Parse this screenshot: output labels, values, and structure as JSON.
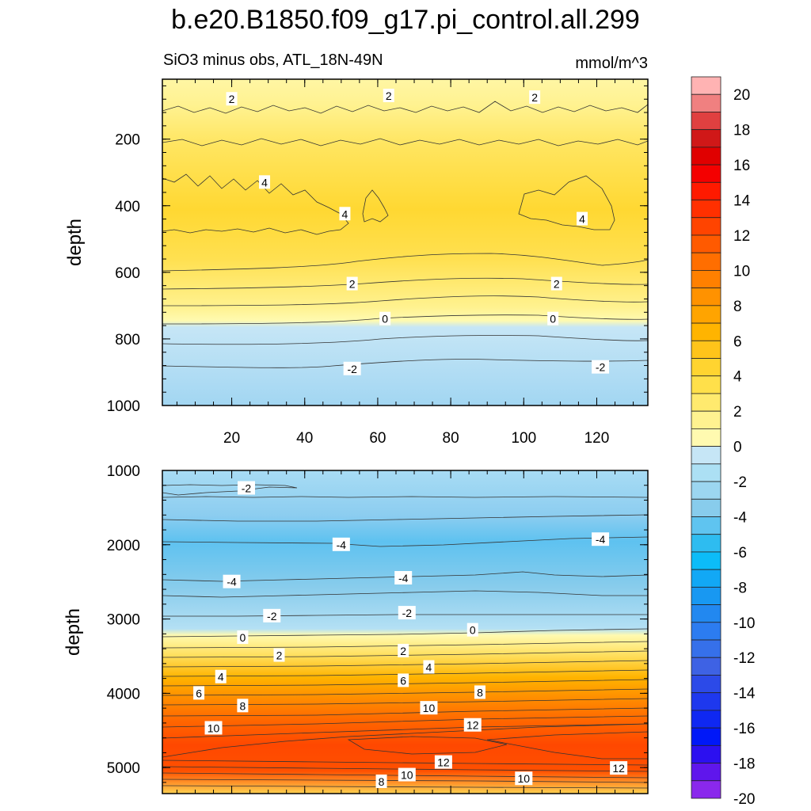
{
  "chart_data": {
    "type": "contour",
    "title": "b.e20.B1850.f09_g17.pi_control.all.299",
    "subtitle": "SiO3 minus obs, ATL_18N-49N",
    "units": "mmol/m^3",
    "colorbar": {
      "labels": [
        "20",
        "18",
        "16",
        "14",
        "12",
        "10",
        "8",
        "6",
        "4",
        "2",
        "0",
        "-2",
        "-4",
        "-6",
        "-8",
        "-10",
        "-12",
        "-14",
        "-16",
        "-18",
        "-20"
      ],
      "colors": [
        "#ffb3b3",
        "#f08080",
        "#e04040",
        "#d01818",
        "#e00000",
        "#f40000",
        "#ff1a00",
        "#ff3000",
        "#ff4400",
        "#ff5a00",
        "#ff6e00",
        "#ff8000",
        "#ff9200",
        "#ffa400",
        "#ffb400",
        "#ffc41a",
        "#ffd430",
        "#ffe04a",
        "#ffea6e",
        "#fff290",
        "#fffab0",
        "#c6e6f6",
        "#ace0f4",
        "#9cd6f0",
        "#88ccec",
        "#5fc4f0",
        "#2ebcf0",
        "#0cbcf8",
        "#12a8f5",
        "#1898f2",
        "#2288f0",
        "#2c7cf0",
        "#3670ea",
        "#3e62e4",
        "#2c4ae8",
        "#1e38ee",
        "#0f28f2",
        "#0018f8",
        "#2c10f0",
        "#5f16ec",
        "#8a28ec"
      ]
    },
    "panels": [
      {
        "name": "upper",
        "ylabel": "depth",
        "xlabel": "",
        "xlim": [
          1,
          134
        ],
        "ylim": [
          1000,
          20
        ],
        "x_ticks": [
          "20",
          "40",
          "60",
          "80",
          "100",
          "120"
        ],
        "y_ticks": [
          "200",
          "400",
          "600",
          "800",
          "1000"
        ],
        "contour_labels": [
          {
            "x": 20,
            "y": 80,
            "text": "2"
          },
          {
            "x": 63,
            "y": 70,
            "text": "2"
          },
          {
            "x": 103,
            "y": 75,
            "text": "2"
          },
          {
            "x": 29,
            "y": 330,
            "text": "4"
          },
          {
            "x": 51,
            "y": 425,
            "text": "4"
          },
          {
            "x": 116,
            "y": 440,
            "text": "4"
          },
          {
            "x": 53,
            "y": 635,
            "text": "2"
          },
          {
            "x": 109,
            "y": 635,
            "text": "2"
          },
          {
            "x": 62,
            "y": 740,
            "text": "0"
          },
          {
            "x": 108,
            "y": 740,
            "text": "0"
          },
          {
            "x": 53,
            "y": 890,
            "text": "-2"
          },
          {
            "x": 121,
            "y": 885,
            "text": "-2"
          }
        ]
      },
      {
        "name": "lower",
        "ylabel": "depth",
        "xlabel": "",
        "xlim": [
          1,
          134
        ],
        "ylim": [
          5350,
          1000
        ],
        "x_ticks": [],
        "y_ticks": [
          "1000",
          "2000",
          "3000",
          "4000",
          "5000"
        ],
        "contour_labels": [
          {
            "x": 24,
            "y": 1240,
            "text": "-2"
          },
          {
            "x": 50,
            "y": 2000,
            "text": "-4"
          },
          {
            "x": 121,
            "y": 1930,
            "text": "-4"
          },
          {
            "x": 20,
            "y": 2500,
            "text": "-4"
          },
          {
            "x": 67,
            "y": 2450,
            "text": "-4"
          },
          {
            "x": 31,
            "y": 2960,
            "text": "-2"
          },
          {
            "x": 68,
            "y": 2920,
            "text": "-2"
          },
          {
            "x": 23,
            "y": 3250,
            "text": "0"
          },
          {
            "x": 86,
            "y": 3150,
            "text": "0"
          },
          {
            "x": 33,
            "y": 3490,
            "text": "2"
          },
          {
            "x": 67,
            "y": 3430,
            "text": "2"
          },
          {
            "x": 17,
            "y": 3780,
            "text": "4"
          },
          {
            "x": 74,
            "y": 3650,
            "text": "4"
          },
          {
            "x": 11,
            "y": 4000,
            "text": "6"
          },
          {
            "x": 67,
            "y": 3830,
            "text": "6"
          },
          {
            "x": 23,
            "y": 4170,
            "text": "8"
          },
          {
            "x": 88,
            "y": 3990,
            "text": "8"
          },
          {
            "x": 15,
            "y": 4470,
            "text": "10"
          },
          {
            "x": 74,
            "y": 4200,
            "text": "10"
          },
          {
            "x": 86,
            "y": 4430,
            "text": "12"
          },
          {
            "x": 78,
            "y": 4930,
            "text": "12"
          },
          {
            "x": 126,
            "y": 5010,
            "text": "12"
          },
          {
            "x": 68,
            "y": 5100,
            "text": "10"
          },
          {
            "x": 100,
            "y": 5150,
            "text": "10"
          },
          {
            "x": 61,
            "y": 5190,
            "text": "8"
          }
        ]
      }
    ]
  }
}
